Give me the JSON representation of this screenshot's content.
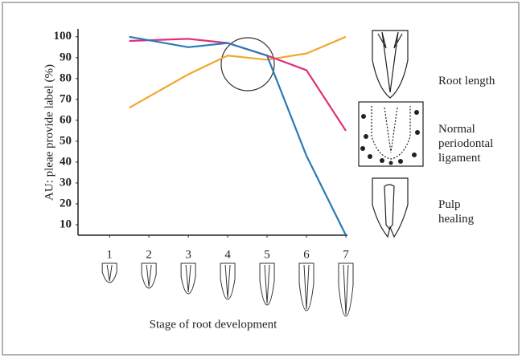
{
  "chart_data": {
    "type": "line",
    "y_label": "AU: pleae provide label (%)",
    "x_label": "Stage of root development",
    "xlim": [
      0.2,
      7
    ],
    "xticks": [
      1,
      2,
      3,
      4,
      5,
      6,
      7
    ],
    "ylim": [
      5,
      103
    ],
    "yticks": [
      10,
      20,
      30,
      40,
      50,
      60,
      70,
      80,
      90,
      100
    ],
    "series": [
      {
        "name": "Root length",
        "color": "#f0a830",
        "x": [
          1.5,
          3,
          4,
          5,
          6,
          7
        ],
        "values": [
          66,
          82,
          91,
          89,
          92,
          100
        ]
      },
      {
        "name": "Normal periodontal ligament",
        "color": "#e0307a",
        "x": [
          1.5,
          3,
          4,
          5,
          6,
          7
        ],
        "values": [
          98,
          99,
          97,
          91,
          84,
          55
        ]
      },
      {
        "name": "Pulp healing",
        "color": "#2a7ab8",
        "x": [
          1.5,
          3,
          4,
          5,
          6,
          7
        ],
        "values": [
          100,
          95,
          97,
          91,
          43,
          5
        ]
      }
    ]
  }
}
